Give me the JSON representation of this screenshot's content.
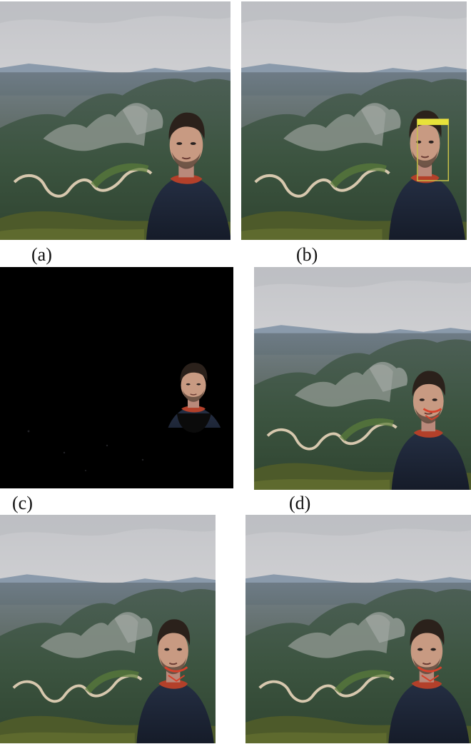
{
  "figure": {
    "panels": [
      {
        "id": "a",
        "label": "(a)",
        "content": "landscape-with-person"
      },
      {
        "id": "b",
        "label": "(b)",
        "content": "landscape-with-person-face-detection-box"
      },
      {
        "id": "c",
        "label": "(c)",
        "content": "segmented-face-on-black"
      },
      {
        "id": "d",
        "label": "(d)",
        "content": "landscape-with-person"
      },
      {
        "id": "e",
        "label": "",
        "content": "landscape-with-person"
      },
      {
        "id": "f",
        "label": "",
        "content": "landscape-with-person"
      }
    ]
  },
  "colors": {
    "sky": "#cfd0d3",
    "haze": "#b7bcc3",
    "mountain": "#3d5342",
    "road": "#cfc0a8",
    "jacket": "#1f2738",
    "skin": "#c89a82",
    "hair": "#2b211b",
    "detect_box": "#e8e23a",
    "black": "#000000"
  }
}
